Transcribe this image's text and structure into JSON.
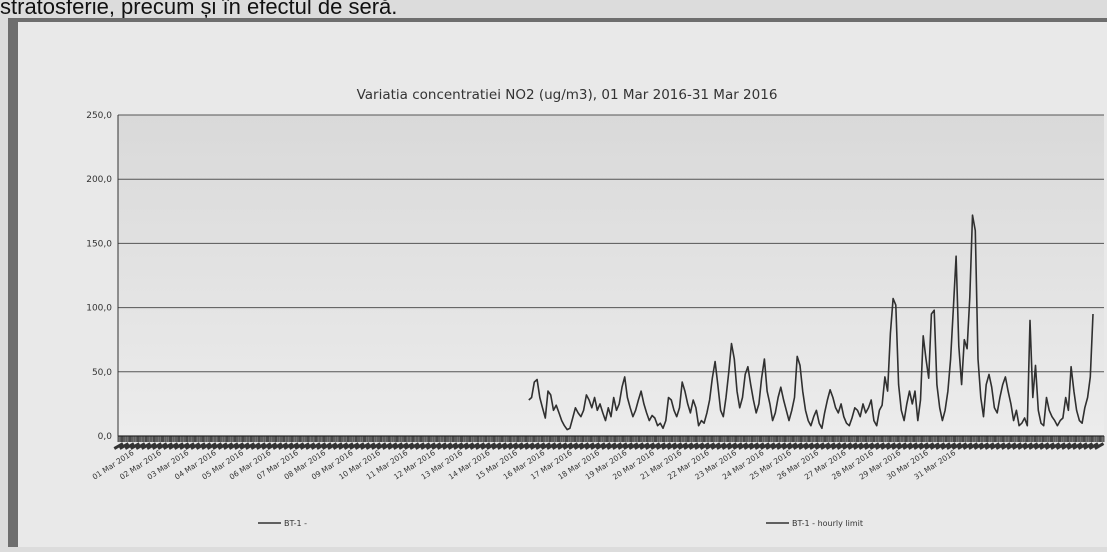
{
  "page": {
    "intro_text": "stratosferie, precum și în efectul de seră."
  },
  "chart_data": {
    "type": "line",
    "title": "Variatia concentratiei  NO2 (ug/m3), 01 Mar 2016-31 Mar 2016",
    "xlabel": "",
    "ylabel": "",
    "ylim": [
      0,
      250
    ],
    "yticks": [
      "0,0",
      "50,0",
      "100,0",
      "150,0",
      "200,0",
      "250,0"
    ],
    "grid": true,
    "legend_position": "bottom",
    "categories": [
      "01 Mar 2016",
      "02 Mar 2016",
      "03 Mar 2016",
      "04 Mar 2016",
      "05 Mar 2016",
      "06 Mar 2016",
      "07 Mar 2016",
      "08 Mar 2016",
      "09 Mar 2016",
      "10 Mar 2016",
      "11 Mar 2016",
      "12 Mar 2016",
      "13 Mar 2016",
      "14 Mar 2016",
      "15 Mar 2016",
      "16 Mar 2016",
      "17 Mar 2016",
      "18 Mar 2016",
      "19 Mar 2016",
      "20 Mar 2016",
      "21 Mar 2016",
      "22 Mar 2016",
      "23 Mar 2016",
      "24 Mar 2016",
      "25 Mar 2016",
      "26 Mar 2016",
      "27 Mar 2016",
      "28 Mar 2016",
      "29 Mar 2016",
      "30 Mar 2016",
      "31 Mar 2016"
    ],
    "series": [
      {
        "name": "BT-1 -",
        "color": "#303030",
        "points": [
          [
            15.0,
            28
          ],
          [
            15.1,
            30
          ],
          [
            15.2,
            42
          ],
          [
            15.3,
            44
          ],
          [
            15.4,
            30
          ],
          [
            15.5,
            22
          ],
          [
            15.6,
            14
          ],
          [
            15.7,
            35
          ],
          [
            15.8,
            32
          ],
          [
            15.9,
            20
          ],
          [
            16.0,
            24
          ],
          [
            16.1,
            18
          ],
          [
            16.2,
            12
          ],
          [
            16.3,
            8
          ],
          [
            16.4,
            5
          ],
          [
            16.5,
            6
          ],
          [
            16.6,
            14
          ],
          [
            16.7,
            22
          ],
          [
            16.8,
            18
          ],
          [
            16.9,
            15
          ],
          [
            17.0,
            20
          ],
          [
            17.1,
            32
          ],
          [
            17.2,
            28
          ],
          [
            17.3,
            22
          ],
          [
            17.4,
            30
          ],
          [
            17.5,
            20
          ],
          [
            17.6,
            25
          ],
          [
            17.7,
            18
          ],
          [
            17.8,
            12
          ],
          [
            17.9,
            22
          ],
          [
            18.0,
            15
          ],
          [
            18.1,
            30
          ],
          [
            18.2,
            20
          ],
          [
            18.3,
            25
          ],
          [
            18.4,
            38
          ],
          [
            18.5,
            46
          ],
          [
            18.6,
            30
          ],
          [
            18.7,
            22
          ],
          [
            18.8,
            15
          ],
          [
            18.9,
            20
          ],
          [
            19.0,
            28
          ],
          [
            19.1,
            35
          ],
          [
            19.2,
            25
          ],
          [
            19.3,
            18
          ],
          [
            19.4,
            12
          ],
          [
            19.5,
            16
          ],
          [
            19.6,
            14
          ],
          [
            19.7,
            8
          ],
          [
            19.8,
            10
          ],
          [
            19.9,
            6
          ],
          [
            20.0,
            12
          ],
          [
            20.1,
            30
          ],
          [
            20.2,
            28
          ],
          [
            20.3,
            20
          ],
          [
            20.4,
            15
          ],
          [
            20.5,
            22
          ],
          [
            20.6,
            42
          ],
          [
            20.7,
            35
          ],
          [
            20.8,
            25
          ],
          [
            20.9,
            18
          ],
          [
            21.0,
            28
          ],
          [
            21.1,
            22
          ],
          [
            21.2,
            8
          ],
          [
            21.3,
            12
          ],
          [
            21.4,
            10
          ],
          [
            21.5,
            18
          ],
          [
            21.6,
            28
          ],
          [
            21.7,
            45
          ],
          [
            21.8,
            58
          ],
          [
            21.9,
            40
          ],
          [
            22.0,
            20
          ],
          [
            22.1,
            15
          ],
          [
            22.2,
            30
          ],
          [
            22.3,
            50
          ],
          [
            22.4,
            72
          ],
          [
            22.5,
            60
          ],
          [
            22.6,
            35
          ],
          [
            22.7,
            22
          ],
          [
            22.8,
            30
          ],
          [
            22.9,
            48
          ],
          [
            23.0,
            54
          ],
          [
            23.1,
            40
          ],
          [
            23.2,
            28
          ],
          [
            23.3,
            18
          ],
          [
            23.4,
            25
          ],
          [
            23.5,
            45
          ],
          [
            23.6,
            60
          ],
          [
            23.7,
            35
          ],
          [
            23.8,
            25
          ],
          [
            23.9,
            12
          ],
          [
            24.0,
            18
          ],
          [
            24.1,
            30
          ],
          [
            24.2,
            38
          ],
          [
            24.3,
            28
          ],
          [
            24.4,
            20
          ],
          [
            24.5,
            12
          ],
          [
            24.6,
            20
          ],
          [
            24.7,
            30
          ],
          [
            24.8,
            62
          ],
          [
            24.9,
            55
          ],
          [
            25.0,
            35
          ],
          [
            25.1,
            20
          ],
          [
            25.2,
            12
          ],
          [
            25.3,
            8
          ],
          [
            25.4,
            15
          ],
          [
            25.5,
            20
          ],
          [
            25.6,
            10
          ],
          [
            25.7,
            6
          ],
          [
            25.8,
            18
          ],
          [
            25.9,
            28
          ],
          [
            26.0,
            36
          ],
          [
            26.1,
            30
          ],
          [
            26.2,
            22
          ],
          [
            26.3,
            18
          ],
          [
            26.4,
            25
          ],
          [
            26.5,
            15
          ],
          [
            26.6,
            10
          ],
          [
            26.7,
            8
          ],
          [
            26.8,
            14
          ],
          [
            26.9,
            22
          ],
          [
            27.0,
            20
          ],
          [
            27.1,
            15
          ],
          [
            27.2,
            25
          ],
          [
            27.3,
            18
          ],
          [
            27.4,
            22
          ],
          [
            27.5,
            28
          ],
          [
            27.6,
            12
          ],
          [
            27.7,
            8
          ],
          [
            27.8,
            20
          ],
          [
            27.9,
            24
          ],
          [
            28.0,
            46
          ],
          [
            28.1,
            35
          ],
          [
            28.2,
            80
          ],
          [
            28.3,
            107
          ],
          [
            28.4,
            102
          ],
          [
            28.5,
            40
          ],
          [
            28.6,
            20
          ],
          [
            28.7,
            12
          ],
          [
            28.8,
            25
          ],
          [
            28.9,
            35
          ],
          [
            29.0,
            25
          ],
          [
            29.1,
            35
          ],
          [
            29.2,
            12
          ],
          [
            29.3,
            28
          ],
          [
            29.4,
            78
          ],
          [
            29.5,
            60
          ],
          [
            29.6,
            45
          ],
          [
            29.7,
            95
          ],
          [
            29.8,
            98
          ],
          [
            29.9,
            40
          ],
          [
            30.0,
            22
          ],
          [
            30.1,
            12
          ],
          [
            30.2,
            20
          ],
          [
            30.3,
            35
          ],
          [
            30.4,
            60
          ],
          [
            30.5,
            100
          ],
          [
            30.6,
            140
          ],
          [
            30.7,
            70
          ],
          [
            30.8,
            40
          ],
          [
            30.9,
            75
          ],
          [
            31.0,
            68
          ],
          [
            31.1,
            108
          ],
          [
            31.2,
            172
          ],
          [
            31.3,
            160
          ],
          [
            31.4,
            60
          ],
          [
            31.5,
            30
          ],
          [
            31.6,
            15
          ],
          [
            31.7,
            40
          ],
          [
            31.8,
            48
          ],
          [
            31.9,
            38
          ],
          [
            32.0,
            22
          ],
          [
            32.1,
            18
          ],
          [
            32.2,
            30
          ],
          [
            32.3,
            40
          ],
          [
            32.4,
            46
          ],
          [
            32.5,
            35
          ],
          [
            32.6,
            25
          ],
          [
            32.7,
            12
          ],
          [
            32.8,
            20
          ],
          [
            32.9,
            8
          ],
          [
            33.0,
            10
          ],
          [
            33.1,
            14
          ],
          [
            33.2,
            8
          ],
          [
            33.3,
            90
          ],
          [
            33.4,
            30
          ],
          [
            33.5,
            55
          ],
          [
            33.6,
            20
          ],
          [
            33.7,
            10
          ],
          [
            33.8,
            8
          ],
          [
            33.9,
            30
          ],
          [
            34.0,
            20
          ],
          [
            34.1,
            15
          ],
          [
            34.2,
            12
          ],
          [
            34.3,
            8
          ],
          [
            34.4,
            12
          ],
          [
            34.5,
            14
          ],
          [
            34.6,
            30
          ],
          [
            34.7,
            20
          ],
          [
            34.8,
            54
          ],
          [
            34.9,
            35
          ],
          [
            35.0,
            20
          ],
          [
            35.1,
            12
          ],
          [
            35.2,
            10
          ],
          [
            35.3,
            22
          ],
          [
            35.4,
            30
          ],
          [
            35.5,
            46
          ],
          [
            35.6,
            95
          ]
        ]
      },
      {
        "name": "BT-1 - hourly limit",
        "color": "#303030",
        "points": []
      }
    ]
  }
}
